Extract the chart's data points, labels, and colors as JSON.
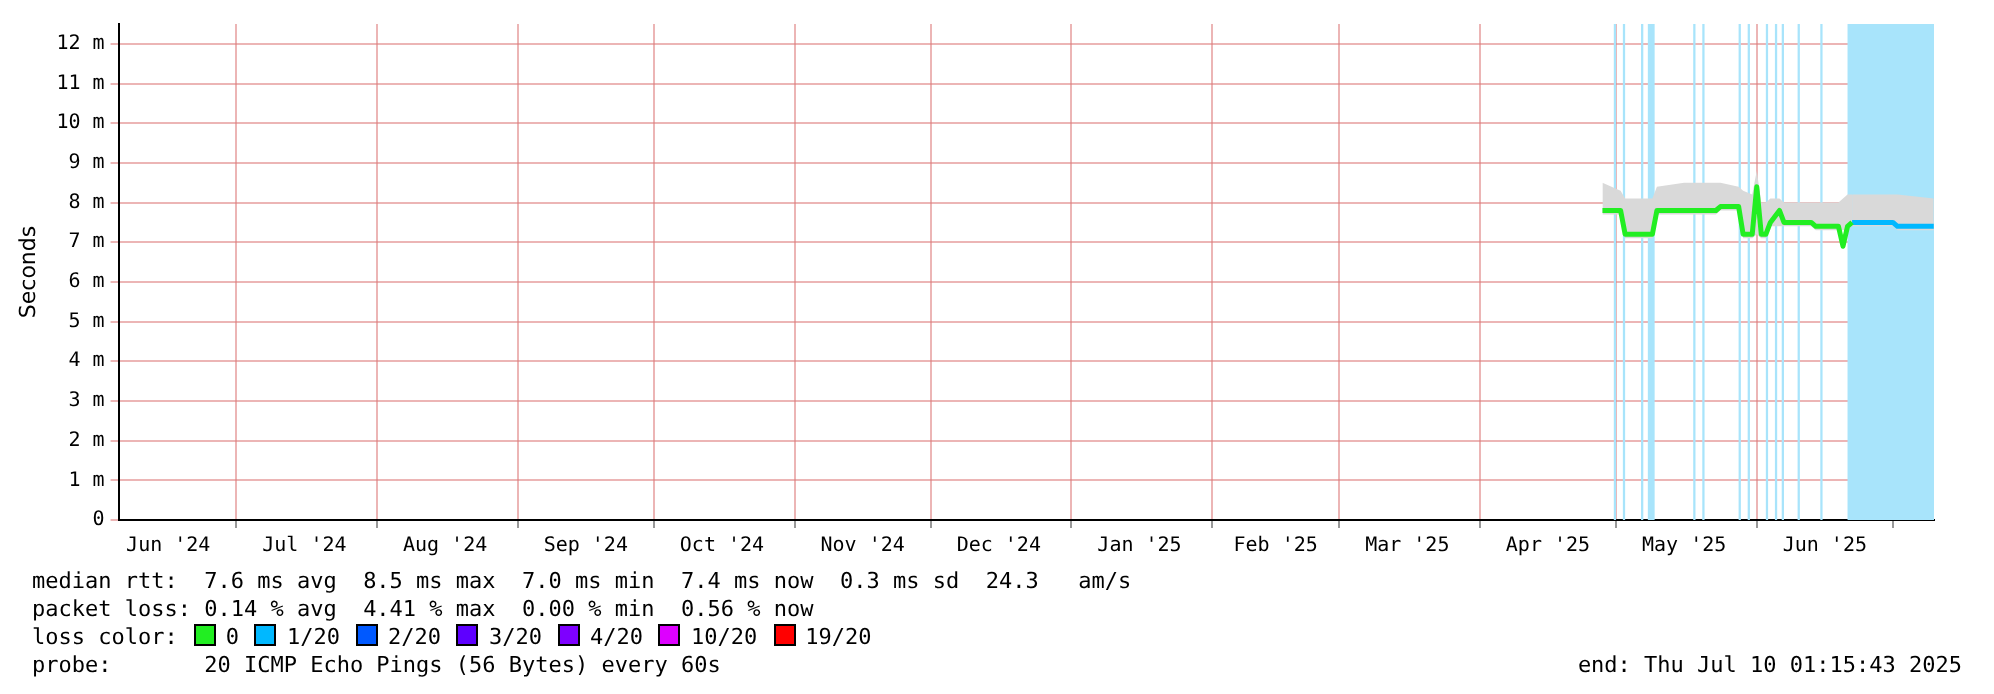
{
  "chart_data": {
    "type": "line",
    "ylabel": "Seconds",
    "legend_title": "loss color:",
    "legend": "bottom",
    "grid": true,
    "marker": "none",
    "line_style": "solid",
    "xlim": [
      "2024-06-05T01:15",
      "2025-07-10T01:15"
    ],
    "xticks": [
      {
        "value": "2024-06-16",
        "label": "Jun '24"
      },
      {
        "value": "2024-07-16",
        "label": "Jul '24"
      },
      {
        "value": "2024-08-16",
        "label": "Aug '24"
      },
      {
        "value": "2024-09-16",
        "label": "Sep '24"
      },
      {
        "value": "2024-10-16",
        "label": "Oct '24"
      },
      {
        "value": "2024-11-16",
        "label": "Nov '24"
      },
      {
        "value": "2024-12-16",
        "label": "Dec '24"
      },
      {
        "value": "2025-01-16",
        "label": "Jan '25"
      },
      {
        "value": "2025-02-15",
        "label": "Feb '25"
      },
      {
        "value": "2025-03-16",
        "label": "Mar '25"
      },
      {
        "value": "2025-04-16",
        "label": "Apr '25"
      },
      {
        "value": "2025-05-16",
        "label": "May '25"
      },
      {
        "value": "2025-06-16",
        "label": "Jun '25"
      },
      {
        "value": "2024-07-01",
        "label": null
      },
      {
        "value": "2024-08-01",
        "label": null
      },
      {
        "value": "2024-09-01",
        "label": null
      },
      {
        "value": "2024-10-01",
        "label": null
      },
      {
        "value": "2024-11-01",
        "label": null
      },
      {
        "value": "2024-12-01",
        "label": null
      },
      {
        "value": "2025-01-01",
        "label": null
      },
      {
        "value": "2025-02-01",
        "label": null
      },
      {
        "value": "2025-03-01",
        "label": null
      },
      {
        "value": "2025-04-01",
        "label": null
      },
      {
        "value": "2025-05-01",
        "label": null
      },
      {
        "value": "2025-06-01",
        "label": null
      },
      {
        "value": "2025-07-01",
        "label": null
      }
    ],
    "ylim": [
      0,
      12.5
    ],
    "yticks": [
      0,
      {
        "value": 1,
        "label": "1 m"
      },
      {
        "value": 2,
        "label": "2 m"
      },
      {
        "value": 3,
        "label": "3 m"
      },
      {
        "value": 4,
        "label": "4 m"
      },
      {
        "value": 5,
        "label": "5 m"
      },
      {
        "value": 6,
        "label": "6 m"
      },
      {
        "value": 7,
        "label": "7 m"
      },
      {
        "value": 8,
        "label": "8 m"
      },
      {
        "value": 9,
        "label": "9 m"
      },
      {
        "value": 10,
        "label": "10 m"
      },
      {
        "value": 11,
        "label": "11 m"
      },
      {
        "value": 12,
        "label": "12 m"
      }
    ],
    "bands": [
      {
        "axis": "x",
        "from": "2025-04-30T12:00",
        "to": "2025-05-01T00:00",
        "color": "#a8e4fb"
      },
      {
        "axis": "x",
        "from": "2025-05-02T12:00",
        "to": "2025-05-03T00:00",
        "color": "#a8e4fb"
      },
      {
        "axis": "x",
        "from": "2025-05-06T12:00",
        "to": "2025-05-07T00:00",
        "color": "#a8e4fb"
      },
      {
        "axis": "x",
        "from": "2025-05-08T00:00",
        "to": "2025-05-09T12:00",
        "color": "#a8e4fb"
      },
      {
        "axis": "x",
        "from": "2025-05-18T00:00",
        "to": "2025-05-18T12:00",
        "color": "#a8e4fb"
      },
      {
        "axis": "x",
        "from": "2025-05-20T00:00",
        "to": "2025-05-20T12:00",
        "color": "#a8e4fb"
      },
      {
        "axis": "x",
        "from": "2025-05-28T00:00",
        "to": "2025-05-28T12:00",
        "color": "#a8e4fb"
      },
      {
        "axis": "x",
        "from": "2025-05-30T00:00",
        "to": "2025-05-30T12:00",
        "color": "#a8e4fb"
      },
      {
        "axis": "x",
        "from": "2025-06-03T00:00",
        "to": "2025-06-03T12:00",
        "color": "#a8e4fb"
      },
      {
        "axis": "x",
        "from": "2025-06-05T00:00",
        "to": "2025-06-05T12:00",
        "color": "#a8e4fb"
      },
      {
        "axis": "x",
        "from": "2025-06-06T12:00",
        "to": "2025-06-07T00:00",
        "color": "#a8e4fb"
      },
      {
        "axis": "x",
        "from": "2025-06-10T00:00",
        "to": "2025-06-10T12:00",
        "color": "#a8e4fb"
      },
      {
        "axis": "x",
        "from": "2025-06-15T00:00",
        "to": "2025-06-15T12:00",
        "color": "#a8e4fb"
      },
      {
        "axis": "x",
        "from": "2025-06-21T00:00",
        "to": "2025-07-10T01:15",
        "color": "#a8e4fb"
      }
    ],
    "series": [
      {
        "name": "0",
        "color": "#22ee22",
        "x": [
          "2025-04-28",
          "2025-04-30",
          "2025-05-02",
          "2025-05-03",
          "2025-05-09",
          "2025-05-10",
          "2025-05-16",
          "2025-05-23",
          "2025-05-24",
          "2025-05-28",
          "2025-05-29",
          "2025-05-31",
          "2025-06-01",
          "2025-06-02",
          "2025-06-03",
          "2025-06-04",
          "2025-06-06",
          "2025-06-07",
          "2025-06-13",
          "2025-06-14",
          "2025-06-19",
          "2025-06-20",
          "2025-06-21",
          "2025-06-22"
        ],
        "values": [
          7.8,
          7.8,
          7.8,
          7.2,
          7.2,
          7.8,
          7.8,
          7.8,
          7.9,
          7.9,
          7.2,
          7.2,
          8.4,
          7.2,
          7.2,
          7.5,
          7.8,
          7.5,
          7.5,
          7.4,
          7.4,
          6.9,
          7.4,
          7.5
        ],
        "lower": [
          7.7,
          7.7,
          7.7,
          7.1,
          7.1,
          7.7,
          7.7,
          7.7,
          7.8,
          7.8,
          7.1,
          7.1,
          7.2,
          7.1,
          7.1,
          7.4,
          7.4,
          7.4,
          7.4,
          7.3,
          7.3,
          7.3,
          7.3,
          7.4
        ],
        "upper": [
          8.5,
          8.4,
          8.3,
          8.1,
          8.1,
          8.4,
          8.5,
          8.5,
          8.5,
          8.4,
          8.3,
          8.2,
          8.8,
          8.0,
          8.0,
          8.1,
          8.1,
          8.0,
          8.0,
          8.0,
          8.0,
          8.1,
          8.2,
          8.2
        ]
      },
      {
        "name": "1/20",
        "color": "#00b8ff",
        "x": [
          "2025-06-22",
          "2025-07-01",
          "2025-07-02",
          "2025-07-10"
        ],
        "values": [
          7.5,
          7.5,
          7.4,
          7.4
        ],
        "lower": [
          7.4,
          7.4,
          7.3,
          7.3
        ],
        "upper": [
          8.2,
          8.2,
          8.2,
          8.1
        ]
      },
      {
        "name": "2/20",
        "color": "#0059ff"
      },
      {
        "name": "3/20",
        "color": "#5e00ff"
      },
      {
        "name": "4/20",
        "color": "#7e00ff"
      },
      {
        "name": "10/20",
        "color": "#dd00ff"
      },
      {
        "name": "19/20",
        "color": "#ff0000"
      }
    ],
    "annotations": [
      "median rtt:  7.6 ms avg  8.5 ms max  7.0 ms min  7.4 ms now  0.3 ms sd  24.3   am/s",
      "packet loss: 0.14 % avg  4.41 % max  0.00 % min  0.56 % now",
      "probe:       20 ICMP Echo Pings (56 Bytes) every 60s",
      "end: Thu Jul 10 01:15:43 2025"
    ]
  }
}
